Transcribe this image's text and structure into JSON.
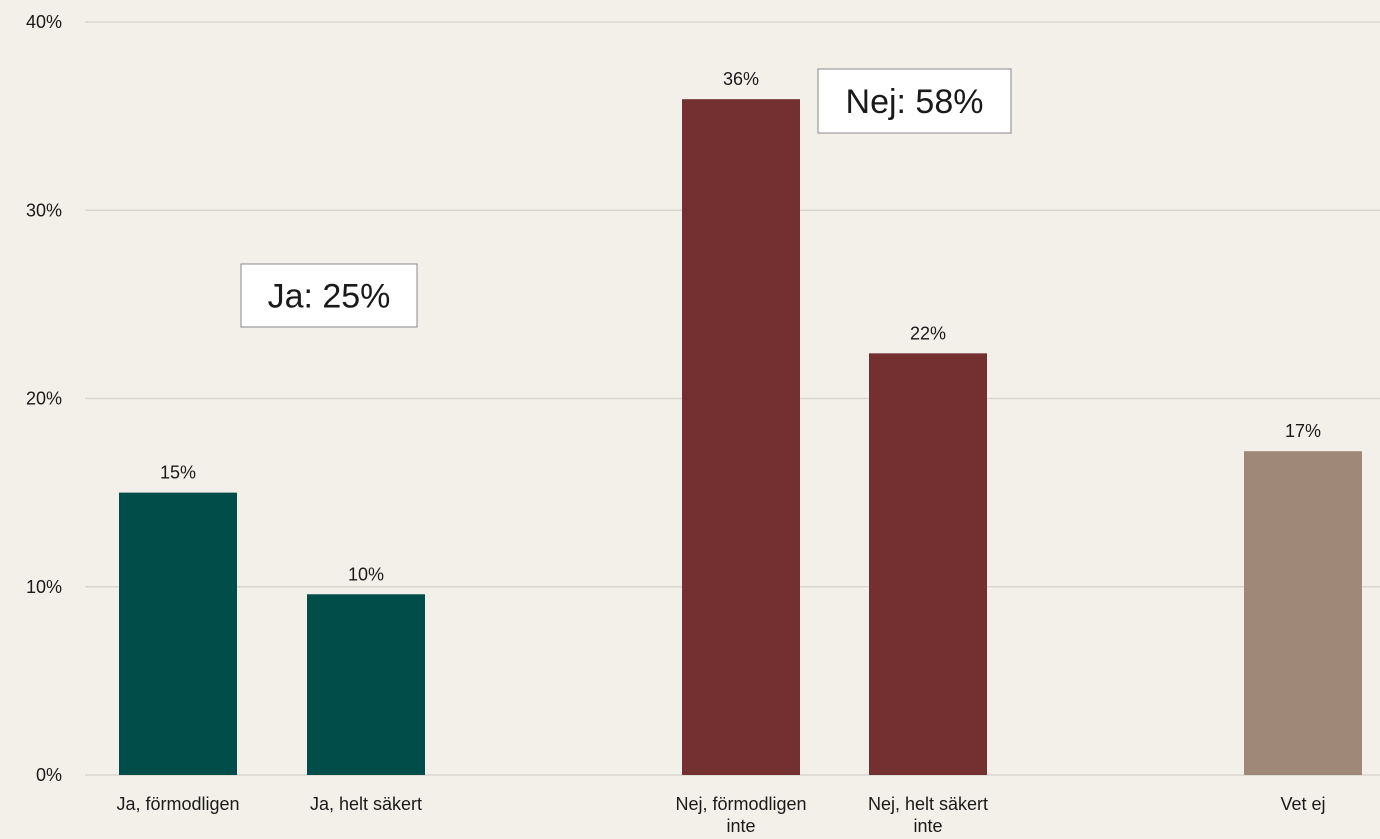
{
  "chart_data": {
    "type": "bar",
    "title": "",
    "xlabel": "",
    "ylabel": "",
    "ylim": [
      0,
      40
    ],
    "yticks": [
      "0%",
      "10%",
      "20%",
      "30%",
      "40%"
    ],
    "ytick_values": [
      0,
      10,
      20,
      30,
      40
    ],
    "grid": true,
    "categories": [
      [
        "Ja, förmodligen"
      ],
      [
        "Ja, helt säkert"
      ],
      [
        "Nej, förmodligen",
        "inte"
      ],
      [
        "Nej, helt säkert",
        "inte"
      ],
      [
        "Vet ej"
      ]
    ],
    "values": [
      15,
      9.6,
      35.9,
      22.4,
      17.2
    ],
    "data_labels": [
      "15%",
      "10%",
      "36%",
      "22%",
      "17%"
    ],
    "colors": [
      "#004d4a",
      "#004d4a",
      "#743031",
      "#743031",
      "#a08878"
    ],
    "annotations": [
      {
        "text": "Ja: 25%",
        "group": "ja"
      },
      {
        "text": "Nej: 58%",
        "group": "nej"
      }
    ]
  }
}
